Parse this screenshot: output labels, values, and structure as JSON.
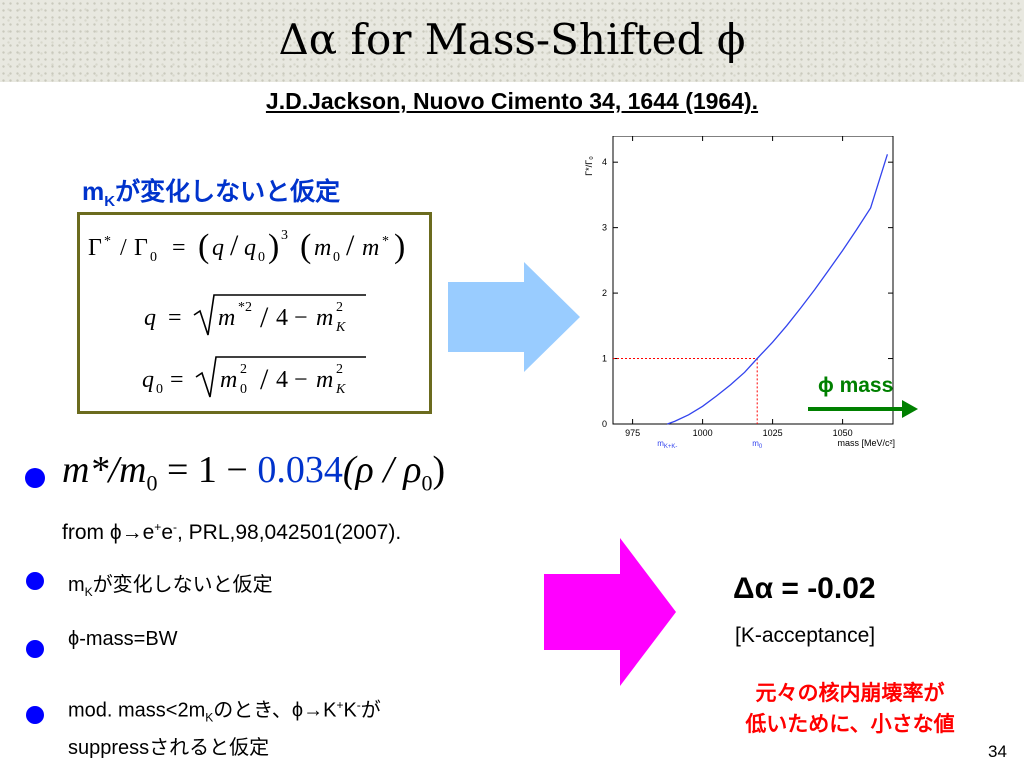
{
  "title": "Δα for Mass-Shifted ϕ",
  "reference": "J.D.Jackson, Nuovo Cimento 34, 1644 (1964).",
  "left_heading": {
    "main": "m",
    "sub": "K",
    "rest": "が変化しないと仮定"
  },
  "main_equation": {
    "lhs": "m*/m",
    "lhs_sub": "0",
    "eq": "= 1 −",
    "coef": "0.034",
    "rhs": "(ρ / ρ",
    "rhs_sub": "0",
    "rhs_end": ")"
  },
  "from_line": {
    "pre": "from ϕ",
    "arrow": "→",
    "e1": "e",
    "e1_sup": "+",
    "e2": "e",
    "e2_sup": "-",
    "post": ", PRL,98,042501(2007)."
  },
  "bullets": {
    "b1": {
      "m": "m",
      "sub": "K",
      "text": "が変化しないと仮定"
    },
    "b2": {
      "text": "ϕ-mass=BW"
    },
    "b3": {
      "pre": "mod. mass<2m",
      "sub": "K",
      "mid": "のとき、ϕ",
      "arrow": "→",
      "k1": "K",
      "k1_sup": "+",
      "k2": "K",
      "k2_sup": "-",
      "post": "が",
      "line2": "suppressされると仮定"
    }
  },
  "result": {
    "text": "Δα = -0.02",
    "acceptance": "[K-acceptance]",
    "note_line1": "元々の核内崩壊率が",
    "note_line2": "低いために、小さな値"
  },
  "phi_mass_label": "ϕ mass",
  "page_number": "34",
  "colors": {
    "blue": "#0033cc",
    "magenta": "#ff00ff",
    "light_blue_arrow": "#99ccff",
    "green": "#008000",
    "red": "#ff0000",
    "box_border": "#6b6b1e"
  },
  "chart_data": {
    "type": "line",
    "ylabel": "Γ*/Γ₀",
    "xlabel": "mass [MeV/c²]",
    "xlim": [
      968,
      1068
    ],
    "ylim": [
      0,
      4.4
    ],
    "x_ticks": [
      "975",
      "1000",
      "1025",
      "1050"
    ],
    "y_ticks": [
      "0",
      "1",
      "2",
      "3",
      "4"
    ],
    "x_markers": [
      {
        "label": "m",
        "sub": "K+K-",
        "x": 987.4
      },
      {
        "label": "m",
        "sub": "0",
        "x": 1019.5
      }
    ],
    "reference_point": {
      "x": 1019.5,
      "y": 1
    },
    "x": [
      987.4,
      990,
      995,
      1000,
      1005,
      1010,
      1015,
      1019.5,
      1025,
      1030,
      1035,
      1040,
      1045,
      1050,
      1055,
      1060,
      1066
    ],
    "values": [
      0,
      0.04,
      0.14,
      0.27,
      0.43,
      0.6,
      0.79,
      1.0,
      1.25,
      1.5,
      1.77,
      2.05,
      2.35,
      2.65,
      2.97,
      3.3,
      4.12
    ]
  }
}
